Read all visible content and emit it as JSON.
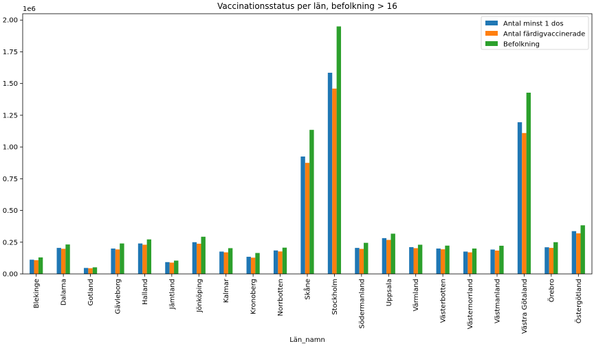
{
  "chart_data": {
    "type": "bar",
    "title": "Vaccinationsstatus per län, befolkning > 16",
    "xlabel": "Län_namn",
    "ylabel": "",
    "y_offset_label": "1e6",
    "ylim": [
      0,
      2.05
    ],
    "yticks": [
      0.0,
      0.25,
      0.5,
      0.75,
      1.0,
      1.25,
      1.5,
      1.75,
      2.0
    ],
    "ytick_labels": [
      "0.00",
      "0.25",
      "0.50",
      "0.75",
      "1.00",
      "1.25",
      "1.50",
      "1.75",
      "2.00"
    ],
    "grid": false,
    "legend_position": "top-right",
    "categories": [
      "Blekinge",
      "Dalarna",
      "Gotland",
      "Gävleborg",
      "Halland",
      "Jämtland",
      "Jönköping",
      "Kalmar",
      "Kronoberg",
      "Norrbotten",
      "Skåne",
      "Stockholm",
      "Södermanland",
      "Uppsala",
      "Värmland",
      "Västerbotten",
      "Västernorrland",
      "Västmanland",
      "Västra Götaland",
      "Örebro",
      "Östergötland"
    ],
    "series": [
      {
        "name": "Antal minst 1 dos",
        "color": "#1f77b4",
        "values": [
          0.112,
          0.205,
          0.047,
          0.2,
          0.24,
          0.093,
          0.25,
          0.176,
          0.135,
          0.185,
          0.925,
          1.585,
          0.205,
          0.282,
          0.211,
          0.2,
          0.176,
          0.192,
          1.195,
          0.21,
          0.337
        ]
      },
      {
        "name": "Antal färdigvaccinerade",
        "color": "#ff7f0e",
        "values": [
          0.108,
          0.198,
          0.045,
          0.193,
          0.23,
          0.089,
          0.238,
          0.17,
          0.128,
          0.177,
          0.875,
          1.46,
          0.197,
          0.268,
          0.203,
          0.194,
          0.17,
          0.184,
          1.11,
          0.205,
          0.32
        ]
      },
      {
        "name": "Befolkning",
        "color": "#2ca02c",
        "values": [
          0.13,
          0.232,
          0.052,
          0.24,
          0.272,
          0.105,
          0.293,
          0.203,
          0.165,
          0.207,
          1.135,
          1.95,
          0.245,
          0.317,
          0.23,
          0.223,
          0.2,
          0.222,
          1.428,
          0.25,
          0.383
        ]
      }
    ]
  }
}
